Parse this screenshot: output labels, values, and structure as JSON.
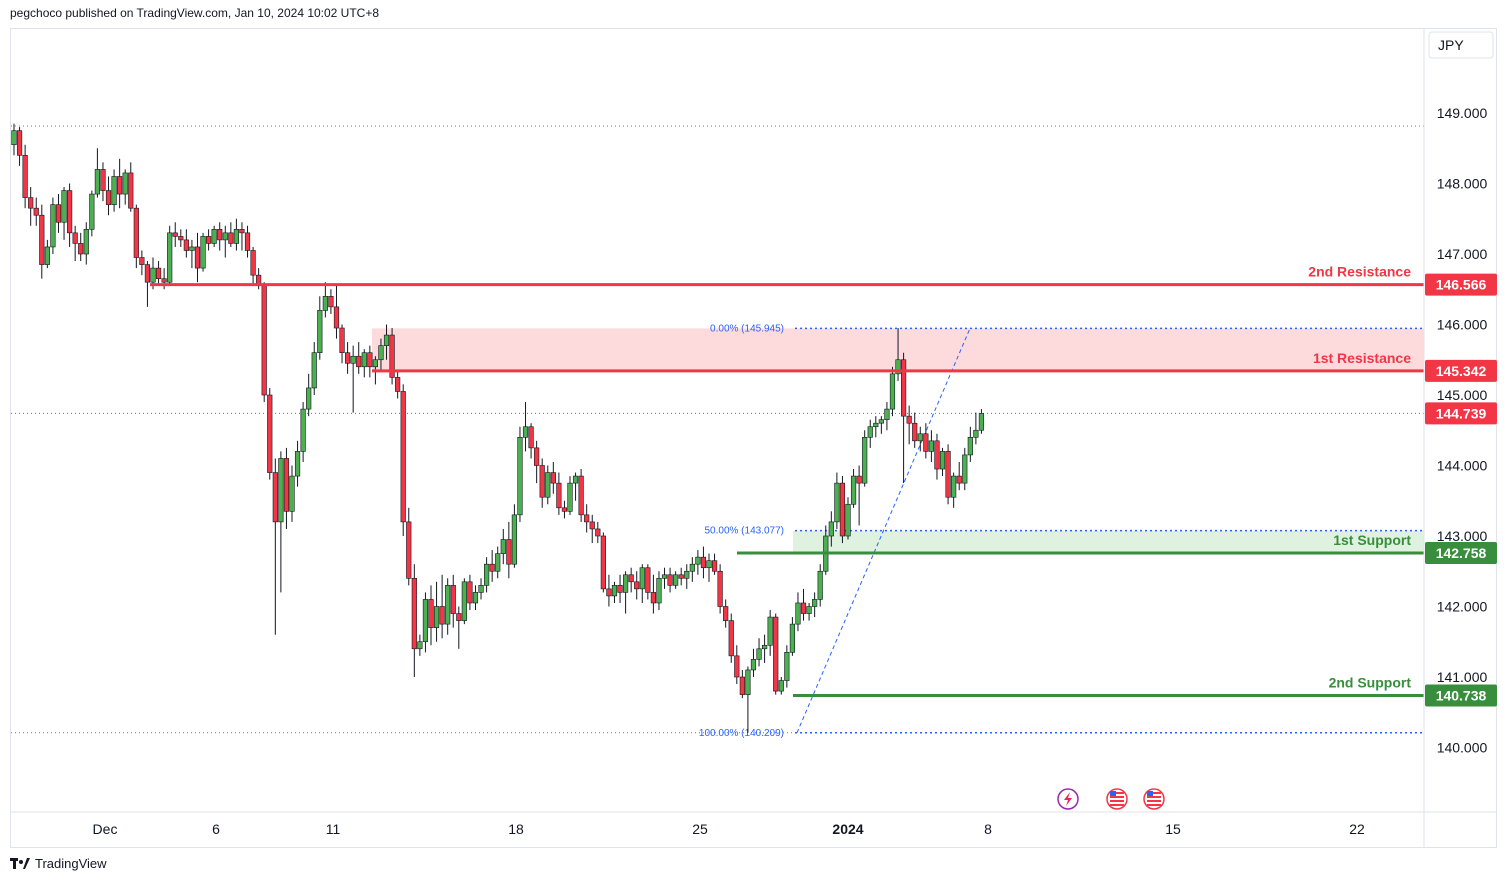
{
  "header": {
    "text": "pegchoco published on TradingView.com, Jan 10, 2024 10:02 UTC+8"
  },
  "footer": {
    "brand": "TradingView"
  },
  "icons": [
    "lightning-icon",
    "us-flag-icon",
    "us-flag-icon"
  ],
  "colors": {
    "up": "#4caf50",
    "down": "#f23645",
    "resistance": "#f23645",
    "support": "#388e3c",
    "fib": "#2962ff"
  },
  "chart_data": {
    "type": "candlestick",
    "currency": "JPY",
    "y_ticks": [
      "149.000",
      "148.000",
      "147.000",
      "146.000",
      "145.000",
      "144.000",
      "143.000",
      "142.000",
      "141.000",
      "140.000"
    ],
    "x_ticks": [
      "Dec",
      "6",
      "11",
      "18",
      "25",
      "2024",
      "8",
      "15",
      "22"
    ],
    "ylim": [
      139.1,
      149.9
    ],
    "current_price": 144.739,
    "levels": [
      {
        "name": "2nd Resistance",
        "price": 146.566,
        "value": "146.566",
        "kind": "resistance"
      },
      {
        "name": "1st Resistance",
        "price": 145.342,
        "value": "145.342",
        "kind": "resistance"
      },
      {
        "name": "1st Support",
        "price": 142.758,
        "value": "142.758",
        "kind": "support"
      },
      {
        "name": "2nd Support",
        "price": 140.738,
        "value": "140.738",
        "kind": "support"
      }
    ],
    "fib": [
      {
        "label": "0.00% (145.945)",
        "price": 145.945
      },
      {
        "label": "50.00% (143.077)",
        "price": 143.077
      },
      {
        "label": "100.00% (140.209)",
        "price": 140.209
      }
    ],
    "close_label": "144.739",
    "candles": [
      [
        148.55,
        148.85,
        148.4,
        148.75
      ],
      [
        148.75,
        148.8,
        148.25,
        148.4
      ],
      [
        148.4,
        148.55,
        147.65,
        147.8
      ],
      [
        147.8,
        147.95,
        147.4,
        147.65
      ],
      [
        147.65,
        147.8,
        147.4,
        147.55
      ],
      [
        147.55,
        147.7,
        146.65,
        146.85
      ],
      [
        146.85,
        147.2,
        146.8,
        147.1
      ],
      [
        147.1,
        147.8,
        147.0,
        147.7
      ],
      [
        147.7,
        147.85,
        147.3,
        147.45
      ],
      [
        147.45,
        147.95,
        147.2,
        147.9
      ],
      [
        147.9,
        148.0,
        147.1,
        147.3
      ],
      [
        147.3,
        147.4,
        146.9,
        147.15
      ],
      [
        147.15,
        147.3,
        146.9,
        147.0
      ],
      [
        147.0,
        147.45,
        146.85,
        147.35
      ],
      [
        147.35,
        147.9,
        147.25,
        147.85
      ],
      [
        147.85,
        148.5,
        147.8,
        148.2
      ],
      [
        148.2,
        148.3,
        147.75,
        147.9
      ],
      [
        147.9,
        148.1,
        147.55,
        147.7
      ],
      [
        147.7,
        148.2,
        147.6,
        148.1
      ],
      [
        148.1,
        148.35,
        147.65,
        147.85
      ],
      [
        147.85,
        148.2,
        147.7,
        148.15
      ],
      [
        148.15,
        148.3,
        147.6,
        147.65
      ],
      [
        147.65,
        147.7,
        146.8,
        146.95
      ],
      [
        146.95,
        147.05,
        146.7,
        146.85
      ],
      [
        146.85,
        146.9,
        146.25,
        146.6
      ],
      [
        146.6,
        146.95,
        146.5,
        146.8
      ],
      [
        146.8,
        146.9,
        146.55,
        146.65
      ],
      [
        146.65,
        146.8,
        146.5,
        146.6
      ],
      [
        146.6,
        147.4,
        146.55,
        147.3
      ],
      [
        147.3,
        147.45,
        147.1,
        147.25
      ],
      [
        147.25,
        147.35,
        147.1,
        147.2
      ],
      [
        147.2,
        147.35,
        146.95,
        147.05
      ],
      [
        147.05,
        147.2,
        146.8,
        147.1
      ],
      [
        147.1,
        147.3,
        146.6,
        146.8
      ],
      [
        146.8,
        147.3,
        146.75,
        147.25
      ],
      [
        147.25,
        147.35,
        147.05,
        147.15
      ],
      [
        147.15,
        147.4,
        147.1,
        147.35
      ],
      [
        147.35,
        147.45,
        147.05,
        147.2
      ],
      [
        147.2,
        147.4,
        146.95,
        147.3
      ],
      [
        147.3,
        147.45,
        147.1,
        147.15
      ],
      [
        147.15,
        147.5,
        147.05,
        147.35
      ],
      [
        147.35,
        147.45,
        147.05,
        147.3
      ],
      [
        147.3,
        147.4,
        146.95,
        147.05
      ],
      [
        147.05,
        147.1,
        146.55,
        146.7
      ],
      [
        146.7,
        146.8,
        146.5,
        146.55
      ],
      [
        146.55,
        146.6,
        144.9,
        145.0
      ],
      [
        145.0,
        145.1,
        143.8,
        143.9
      ],
      [
        143.9,
        144.1,
        141.6,
        143.2
      ],
      [
        143.2,
        144.2,
        142.2,
        144.1
      ],
      [
        144.1,
        144.25,
        143.1,
        143.35
      ],
      [
        143.35,
        144.0,
        143.2,
        143.85
      ],
      [
        143.85,
        144.35,
        143.7,
        144.2
      ],
      [
        144.2,
        144.9,
        144.05,
        144.8
      ],
      [
        144.8,
        145.3,
        144.7,
        145.1
      ],
      [
        145.1,
        145.75,
        145.0,
        145.6
      ],
      [
        145.6,
        146.4,
        145.5,
        146.2
      ],
      [
        146.2,
        146.6,
        146.1,
        146.4
      ],
      [
        146.4,
        146.5,
        146.15,
        146.25
      ],
      [
        146.25,
        146.55,
        145.8,
        145.95
      ],
      [
        145.95,
        146.0,
        145.45,
        145.6
      ],
      [
        145.6,
        145.75,
        145.3,
        145.45
      ],
      [
        145.45,
        145.7,
        144.75,
        145.55
      ],
      [
        145.55,
        145.75,
        145.3,
        145.4
      ],
      [
        145.4,
        145.65,
        145.25,
        145.6
      ],
      [
        145.6,
        145.7,
        145.25,
        145.4
      ],
      [
        145.4,
        145.55,
        145.15,
        145.5
      ],
      [
        145.5,
        145.8,
        145.35,
        145.7
      ],
      [
        145.7,
        146.0,
        145.5,
        145.85
      ],
      [
        145.85,
        145.95,
        145.15,
        145.25
      ],
      [
        145.25,
        145.35,
        144.95,
        145.05
      ],
      [
        145.05,
        145.15,
        143.0,
        143.2
      ],
      [
        143.2,
        143.4,
        142.3,
        142.4
      ],
      [
        142.4,
        142.6,
        141.0,
        141.4
      ],
      [
        141.4,
        141.6,
        141.3,
        141.5
      ],
      [
        141.5,
        142.2,
        141.35,
        142.1
      ],
      [
        142.1,
        142.3,
        141.45,
        141.7
      ],
      [
        141.7,
        142.35,
        141.5,
        142.0
      ],
      [
        142.0,
        142.45,
        141.55,
        141.75
      ],
      [
        141.75,
        142.4,
        141.6,
        142.3
      ],
      [
        142.3,
        142.45,
        141.7,
        141.9
      ],
      [
        141.9,
        142.0,
        141.4,
        141.8
      ],
      [
        141.8,
        142.4,
        141.75,
        142.35
      ],
      [
        142.35,
        142.45,
        141.95,
        142.05
      ],
      [
        142.05,
        142.3,
        141.95,
        142.2
      ],
      [
        142.2,
        142.4,
        142.1,
        142.3
      ],
      [
        142.3,
        142.7,
        142.2,
        142.6
      ],
      [
        142.6,
        142.8,
        142.35,
        142.5
      ],
      [
        142.5,
        142.85,
        142.4,
        142.75
      ],
      [
        142.75,
        143.1,
        142.6,
        142.95
      ],
      [
        142.95,
        143.2,
        142.4,
        142.6
      ],
      [
        142.6,
        143.45,
        142.55,
        143.3
      ],
      [
        143.3,
        144.55,
        143.2,
        144.4
      ],
      [
        144.4,
        144.9,
        144.2,
        144.55
      ],
      [
        144.55,
        144.6,
        144.1,
        144.25
      ],
      [
        144.25,
        144.35,
        143.75,
        144.0
      ],
      [
        144.0,
        144.1,
        143.4,
        143.55
      ],
      [
        143.55,
        144.0,
        143.45,
        143.9
      ],
      [
        143.9,
        144.05,
        143.6,
        143.75
      ],
      [
        143.75,
        143.9,
        143.3,
        143.4
      ],
      [
        143.4,
        143.5,
        143.25,
        143.35
      ],
      [
        143.35,
        143.85,
        143.3,
        143.75
      ],
      [
        143.75,
        143.9,
        143.5,
        143.85
      ],
      [
        143.85,
        143.95,
        143.2,
        143.3
      ],
      [
        143.3,
        143.45,
        143.05,
        143.2
      ],
      [
        143.2,
        143.3,
        142.9,
        143.1
      ],
      [
        143.1,
        143.2,
        142.9,
        143.0
      ],
      [
        143.0,
        143.05,
        142.2,
        142.25
      ],
      [
        142.25,
        142.45,
        142.0,
        142.15
      ],
      [
        142.15,
        142.35,
        142.05,
        142.3
      ],
      [
        142.3,
        142.45,
        142.05,
        142.2
      ],
      [
        142.2,
        142.5,
        141.9,
        142.45
      ],
      [
        142.45,
        142.55,
        142.2,
        142.35
      ],
      [
        142.35,
        142.5,
        142.1,
        142.25
      ],
      [
        142.25,
        142.6,
        142.05,
        142.55
      ],
      [
        142.55,
        142.6,
        142.1,
        142.2
      ],
      [
        142.2,
        142.45,
        141.9,
        142.05
      ],
      [
        142.05,
        142.5,
        141.95,
        142.4
      ],
      [
        142.4,
        142.55,
        142.25,
        142.45
      ],
      [
        142.45,
        142.55,
        142.2,
        142.3
      ],
      [
        142.3,
        142.5,
        142.25,
        142.45
      ],
      [
        142.45,
        142.55,
        142.3,
        142.4
      ],
      [
        142.4,
        142.6,
        142.25,
        142.5
      ],
      [
        142.5,
        142.7,
        142.35,
        142.6
      ],
      [
        142.6,
        142.8,
        142.45,
        142.7
      ],
      [
        142.7,
        142.85,
        142.4,
        142.55
      ],
      [
        142.55,
        142.75,
        142.35,
        142.65
      ],
      [
        142.65,
        142.75,
        142.45,
        142.5
      ],
      [
        142.5,
        142.6,
        141.9,
        142.0
      ],
      [
        142.0,
        142.1,
        141.7,
        141.8
      ],
      [
        141.8,
        141.9,
        141.2,
        141.3
      ],
      [
        141.3,
        141.45,
        140.9,
        141.0
      ],
      [
        141.0,
        141.1,
        140.7,
        140.75
      ],
      [
        140.75,
        141.15,
        140.21,
        141.1
      ],
      [
        141.1,
        141.4,
        141.0,
        141.25
      ],
      [
        141.25,
        141.55,
        141.15,
        141.4
      ],
      [
        141.4,
        141.6,
        141.2,
        141.45
      ],
      [
        141.45,
        141.95,
        141.3,
        141.85
      ],
      [
        141.85,
        141.9,
        140.75,
        140.8
      ],
      [
        140.8,
        141.0,
        140.75,
        140.95
      ],
      [
        140.95,
        141.45,
        140.85,
        141.35
      ],
      [
        141.35,
        141.85,
        141.3,
        141.75
      ],
      [
        141.75,
        142.2,
        141.65,
        142.05
      ],
      [
        142.05,
        142.25,
        141.8,
        141.9
      ],
      [
        141.9,
        142.05,
        141.8,
        142.0
      ],
      [
        142.0,
        142.2,
        141.85,
        142.1
      ],
      [
        142.1,
        142.6,
        142.0,
        142.5
      ],
      [
        142.5,
        143.15,
        142.45,
        143.0
      ],
      [
        143.0,
        143.35,
        142.85,
        143.2
      ],
      [
        143.2,
        143.9,
        143.1,
        143.75
      ],
      [
        143.75,
        143.85,
        142.9,
        143.0
      ],
      [
        143.0,
        143.55,
        142.95,
        143.45
      ],
      [
        143.45,
        143.95,
        143.4,
        143.85
      ],
      [
        143.85,
        144.0,
        143.15,
        143.75
      ],
      [
        143.75,
        144.5,
        143.7,
        144.4
      ],
      [
        144.4,
        144.65,
        144.25,
        144.55
      ],
      [
        144.55,
        144.7,
        144.4,
        144.6
      ],
      [
        144.6,
        144.7,
        144.45,
        144.65
      ],
      [
        144.65,
        144.9,
        144.5,
        144.8
      ],
      [
        144.8,
        145.4,
        144.7,
        145.3
      ],
      [
        145.3,
        145.95,
        145.2,
        145.5
      ],
      [
        145.5,
        145.6,
        143.75,
        144.7
      ],
      [
        144.7,
        144.85,
        144.3,
        144.6
      ],
      [
        144.6,
        144.75,
        144.25,
        144.35
      ],
      [
        144.35,
        144.55,
        144.2,
        144.45
      ],
      [
        144.45,
        144.6,
        144.1,
        144.2
      ],
      [
        144.2,
        144.5,
        144.05,
        144.35
      ],
      [
        144.35,
        144.45,
        143.8,
        143.95
      ],
      [
        143.95,
        144.25,
        143.85,
        144.2
      ],
      [
        144.2,
        144.3,
        143.45,
        143.55
      ],
      [
        143.55,
        143.9,
        143.4,
        143.85
      ],
      [
        143.85,
        144.05,
        143.65,
        143.75
      ],
      [
        143.75,
        144.25,
        143.65,
        144.15
      ],
      [
        144.15,
        144.55,
        144.05,
        144.4
      ],
      [
        144.4,
        144.75,
        144.3,
        144.5
      ],
      [
        144.5,
        144.8,
        144.45,
        144.739
      ]
    ]
  }
}
